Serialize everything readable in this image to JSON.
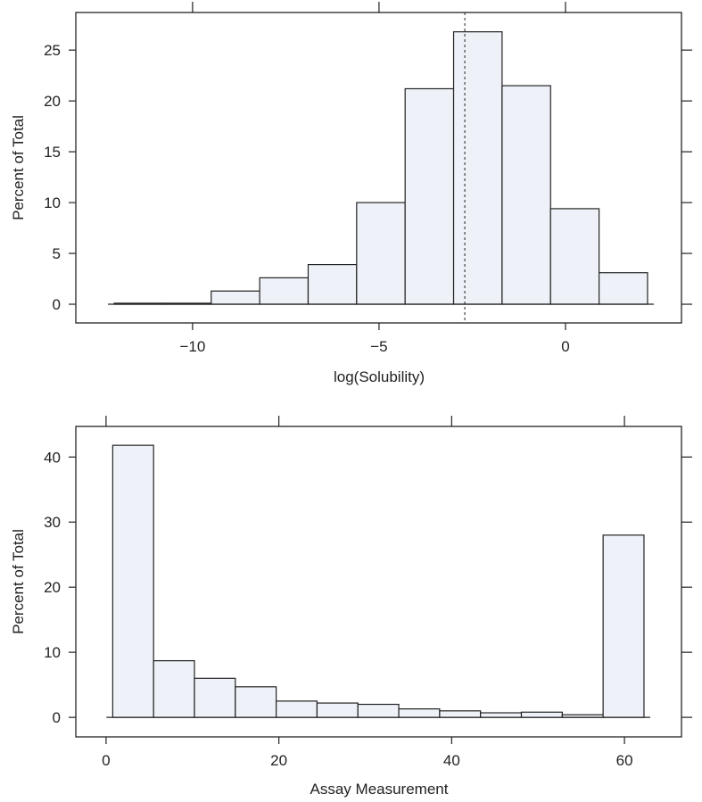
{
  "chart_data": [
    {
      "type": "bar",
      "xlabel": "log(Solubility)",
      "ylabel": "Percent of Total",
      "bin_edges": [
        -12.1,
        -10.8,
        -9.5,
        -8.2,
        -6.9,
        -5.6,
        -4.3,
        -3.0,
        -1.7,
        -0.4,
        0.9,
        2.2
      ],
      "values": [
        0.1,
        0.1,
        1.3,
        2.6,
        3.9,
        10.0,
        21.2,
        26.8,
        21.5,
        9.4,
        3.1
      ],
      "xticks": [
        -10,
        -5,
        0
      ],
      "xtick_labels": [
        "−10",
        "−5",
        "0"
      ],
      "yticks": [
        0,
        5,
        10,
        15,
        20,
        25
      ],
      "ytick_labels": [
        "0",
        "5",
        "10",
        "15",
        "20",
        "25"
      ],
      "xlim": [
        -13.13,
        3.11
      ],
      "ylim": [
        -1.84,
        28.7
      ],
      "reference_line_x": -2.7,
      "grid": false,
      "fill_color": "#eef2f8",
      "edge_color": "#222222"
    },
    {
      "type": "bar",
      "xlabel": "Assay Measurement",
      "ylabel": "Percent of Total",
      "bin_edges": [
        0.77,
        5.5,
        10.23,
        14.96,
        19.69,
        24.42,
        29.15,
        33.88,
        38.61,
        43.34,
        48.07,
        52.8,
        57.53,
        62.26
      ],
      "values": [
        41.8,
        8.7,
        6.0,
        4.7,
        2.5,
        2.2,
        2.0,
        1.3,
        1.0,
        0.7,
        0.8,
        0.4,
        28.0
      ],
      "xticks": [
        0,
        20,
        40,
        60
      ],
      "xtick_labels": [
        "0",
        "20",
        "40",
        "60"
      ],
      "yticks": [
        0,
        10,
        20,
        30,
        40
      ],
      "ytick_labels": [
        "0",
        "10",
        "20",
        "30",
        "40"
      ],
      "xlim": [
        -3.5,
        66.6
      ],
      "ylim": [
        -3.0,
        44.7
      ],
      "grid": false,
      "fill_color": "#eef2f8",
      "edge_color": "#222222"
    }
  ]
}
